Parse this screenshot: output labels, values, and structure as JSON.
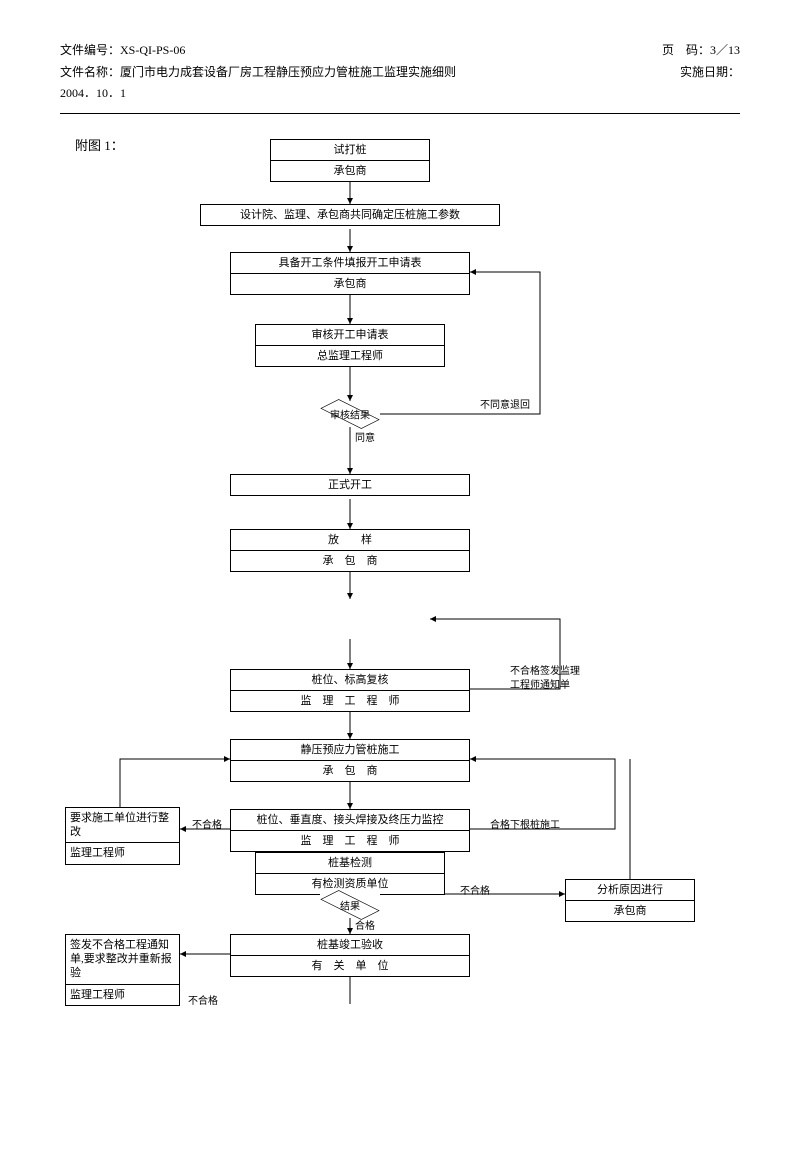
{
  "header": {
    "docId_label": "文件编号：",
    "docId": "XS-QI-PS-06",
    "page_label": "页　码：",
    "page": "3／13",
    "docName_label": "文件名称：",
    "docName": "厦门市电力成套设备厂房工程静压预应力管桩施工监理实施细则",
    "effDate_label": "实施日期：",
    "effDate": "2004．10．1"
  },
  "figure_label": "附图 1：",
  "nodes": {
    "n1_t": "试打桩",
    "n1_b": "承包商",
    "n2": "设计院、监理、承包商共同确定压桩施工参数",
    "n3_t": "具备开工条件填报开工申请表",
    "n3_b": "承包商",
    "n4_t": "审核开工申请表",
    "n4_b": "总监理工程师",
    "d1": "审核结果",
    "n5": "正式开工",
    "n6_t": "放　　样",
    "n6_b": "承　包　商",
    "n7_t": "桩位、标高复核",
    "n7_b": "监　理　工　程　师",
    "n8_t": "静压预应力管桩施工",
    "n8_b": "承　包　商",
    "n9_t": "桩位、垂直度、接头焊接及终压力监控",
    "n9_b": "监　理　工　程　师",
    "left1_t": "要求施工单位进行整改",
    "left1_b": "监理工程师",
    "n10_t": "桩基检测",
    "n10_b": "有检测资质单位",
    "d2": "结果",
    "right1_t": "分析原因进行",
    "right1_b": "承包商",
    "n11_t": "桩基竣工验收",
    "n11_b": "有　关　单　位",
    "left2_t": "签发不合格工程通知单,要求整改并重新报验",
    "left2_b": "监理工程师"
  },
  "labels": {
    "l_reject1": "不同意退回",
    "l_agree": "同意",
    "l_notice": "不合格签发监理",
    "l_notice2": "工程师通知单",
    "l_fail": "不合格",
    "l_pass_next": "合格下根桩施工",
    "l_fail2": "不合格",
    "l_pass": "合格",
    "l_fail3": "不合格"
  },
  "style": {
    "stroke": "#000000",
    "bg": "#ffffff",
    "font": "SimSun",
    "fontsize_body": 11,
    "fontsize_header": 12,
    "linewidth": 1
  },
  "layout": {
    "mainX": 170,
    "mainW": 240,
    "narrowW": 160,
    "centerX": 290
  }
}
